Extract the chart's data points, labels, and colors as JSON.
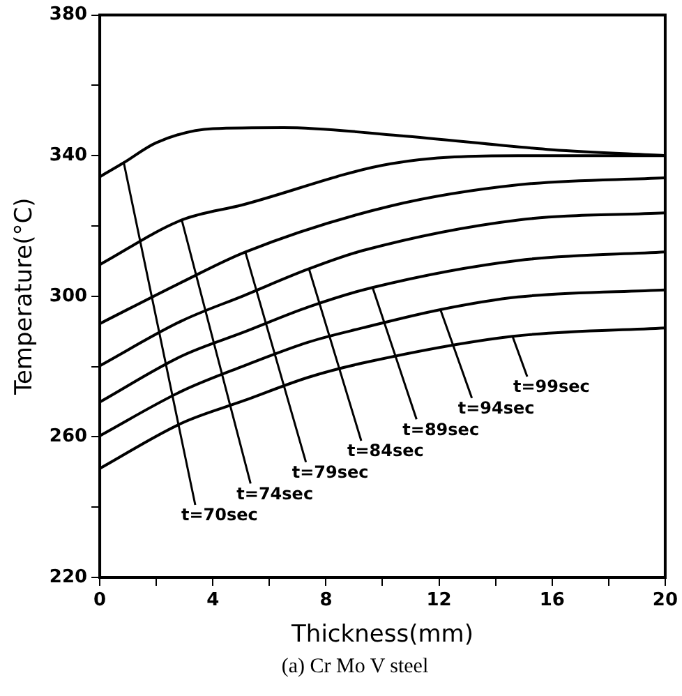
{
  "chart_data": {
    "type": "line",
    "xlabel": "Thickness(mm)",
    "ylabel": "Temperature(°C)",
    "xlim": [
      0,
      20
    ],
    "xticks": [
      0,
      {
        "value": 2,
        "label": null
      },
      4,
      {
        "value": 6,
        "label": null
      },
      8,
      {
        "value": 10,
        "label": null
      },
      12,
      {
        "value": 14,
        "label": null
      },
      16,
      {
        "value": 18,
        "label": null
      },
      20
    ],
    "ylim": [
      220,
      380
    ],
    "yticks": [
      220,
      {
        "value": 240,
        "label": null
      },
      260,
      {
        "value": 280,
        "label": null
      },
      300,
      {
        "value": 320,
        "label": null
      },
      340,
      {
        "value": 360,
        "label": null
      },
      380
    ],
    "grid": false,
    "legend": false,
    "marker": "none",
    "line_style": "solid",
    "series": [
      {
        "color": "#000000",
        "x": [
          0,
          0.85,
          2,
          4,
          6.5,
          10.6,
          16,
          20
        ],
        "values": [
          334,
          338,
          343.7,
          347.7,
          348,
          345.7,
          341.7,
          340
        ]
      },
      {
        "color": "#000000",
        "x": [
          0,
          2.9,
          5.05,
          10.3,
          14.8,
          20
        ],
        "values": [
          309,
          321.7,
          326,
          337.7,
          340,
          340
        ]
      },
      {
        "color": "#000000",
        "x": [
          0,
          2.9,
          5.15,
          10.3,
          14.8,
          20
        ],
        "values": [
          292.2,
          304,
          312.6,
          325.7,
          331.7,
          333.7
        ]
      },
      {
        "color": "#000000",
        "x": [
          0,
          2.9,
          5.1,
          7.4,
          9.3,
          14.8,
          20
        ],
        "values": [
          280.2,
          293,
          300.2,
          307.8,
          313,
          321.7,
          323.7
        ]
      },
      {
        "color": "#000000",
        "x": [
          0,
          2.9,
          5.1,
          7.4,
          9.65,
          14.8,
          20
        ],
        "values": [
          269.9,
          283,
          289.8,
          297,
          302.5,
          310.2,
          312.6
        ]
      },
      {
        "color": "#000000",
        "x": [
          0,
          2.9,
          5.1,
          7.4,
          9.3,
          12.05,
          14.8,
          20
        ],
        "values": [
          260.3,
          273,
          280.2,
          287,
          291,
          296.2,
          299.8,
          301.8
        ]
      },
      {
        "color": "#000000",
        "x": [
          0,
          2.9,
          5.1,
          7.4,
          9.3,
          14.6,
          20
        ],
        "values": [
          251,
          263.9,
          270.3,
          277,
          281,
          288.6,
          291
        ]
      }
    ],
    "annotations": [
      {
        "text": "t=70sec",
        "x": 0.85,
        "y": 338
      },
      {
        "text": "t=74sec",
        "x": 2.9,
        "y": 321.7
      },
      {
        "text": "t=79sec",
        "x": 5.15,
        "y": 312.6
      },
      {
        "text": "t=84sec",
        "x": 7.4,
        "y": 307.8
      },
      {
        "text": "t=89sec",
        "x": 9.65,
        "y": 302.5
      },
      {
        "text": "t=94sec",
        "x": 12.05,
        "y": 296.2
      },
      {
        "text": "t=99sec",
        "x": 14.6,
        "y": 288.6
      },
      "(a) Cr Mo V steel"
    ]
  }
}
